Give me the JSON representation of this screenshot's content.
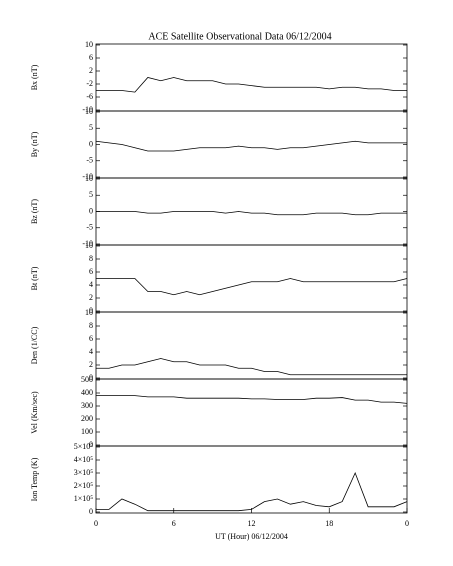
{
  "chart_data": [
    {
      "type": "line",
      "title": "ACE Satellite Observational Data   06/12/2004",
      "y_label": "Bx (nT)",
      "color": "#000000",
      "x": [
        0,
        1,
        2,
        3,
        4,
        5,
        6,
        7,
        8,
        9,
        10,
        11,
        12,
        13,
        14,
        15,
        16,
        17,
        18,
        19,
        20,
        21,
        22,
        23,
        24
      ],
      "values": [
        -4,
        -4,
        -4,
        -4.5,
        0,
        -1,
        0,
        -1,
        -1,
        -1,
        -2,
        -2,
        -2.5,
        -3,
        -3,
        -3,
        -3,
        -3,
        -3.5,
        -3,
        -3,
        -3.5,
        -3.5,
        -4,
        -4
      ],
      "xlim": [
        0,
        24
      ],
      "ylim": [
        -10,
        10
      ],
      "yticks": [
        10,
        6,
        2,
        -2,
        -6,
        -10
      ]
    },
    {
      "type": "line",
      "y_label": "By (nT)",
      "color": "#000000",
      "x": [
        0,
        1,
        2,
        3,
        4,
        5,
        6,
        7,
        8,
        9,
        10,
        11,
        12,
        13,
        14,
        15,
        16,
        17,
        18,
        19,
        20,
        21,
        22,
        23,
        24
      ],
      "values": [
        1,
        0.5,
        0,
        -1,
        -2,
        -2,
        -2,
        -1.5,
        -1,
        -1,
        -1,
        -0.5,
        -1,
        -1,
        -1.5,
        -1,
        -1,
        -0.5,
        0,
        0.5,
        1,
        0.5,
        0.5,
        0.5,
        0.5
      ],
      "xlim": [
        0,
        24
      ],
      "ylim": [
        -10,
        10
      ],
      "yticks": [
        10,
        5,
        0,
        -5,
        -10
      ]
    },
    {
      "type": "line",
      "y_label": "Bz (nT)",
      "color": "#000000",
      "x": [
        0,
        1,
        2,
        3,
        4,
        5,
        6,
        7,
        8,
        9,
        10,
        11,
        12,
        13,
        14,
        15,
        16,
        17,
        18,
        19,
        20,
        21,
        22,
        23,
        24
      ],
      "values": [
        0,
        0,
        0,
        0,
        -0.5,
        -0.5,
        0,
        0,
        0,
        0,
        -0.5,
        0,
        -0.5,
        -0.5,
        -1,
        -1,
        -1,
        -0.5,
        -0.5,
        -0.5,
        -1,
        -1,
        -0.5,
        -0.5,
        -0.5
      ],
      "xlim": [
        0,
        24
      ],
      "ylim": [
        -10,
        10
      ],
      "yticks": [
        10,
        5,
        0,
        -5,
        -10
      ]
    },
    {
      "type": "line",
      "y_label": "Bt (nT)",
      "color": "#000000",
      "x": [
        0,
        1,
        2,
        3,
        4,
        5,
        6,
        7,
        8,
        9,
        10,
        11,
        12,
        13,
        14,
        15,
        16,
        17,
        18,
        19,
        20,
        21,
        22,
        23,
        24
      ],
      "values": [
        5,
        5,
        5,
        5,
        3,
        3,
        2.5,
        3,
        2.5,
        3,
        3.5,
        4,
        4.5,
        4.5,
        4.5,
        5,
        4.5,
        4.5,
        4.5,
        4.5,
        4.5,
        4.5,
        4.5,
        4.5,
        5
      ],
      "xlim": [
        0,
        24
      ],
      "ylim": [
        0,
        10
      ],
      "yticks": [
        10,
        8,
        6,
        4,
        2,
        0
      ]
    },
    {
      "type": "line",
      "y_label": "Den (1/CC)",
      "color": "#000000",
      "x": [
        0,
        1,
        2,
        3,
        4,
        5,
        6,
        7,
        8,
        9,
        10,
        11,
        12,
        13,
        14,
        15,
        16,
        17,
        18,
        19,
        20,
        21,
        22,
        23,
        24
      ],
      "values": [
        1.5,
        1.5,
        2,
        2,
        2.5,
        3,
        2.5,
        2.5,
        2,
        2,
        2,
        1.5,
        1.5,
        1,
        1,
        0.5,
        0.5,
        0.5,
        0.5,
        0.5,
        0.5,
        0.5,
        0.5,
        0.5,
        0.5
      ],
      "xlim": [
        0,
        24
      ],
      "ylim": [
        0,
        10
      ],
      "yticks": [
        10,
        8,
        6,
        4,
        2,
        0
      ]
    },
    {
      "type": "line",
      "y_label": "Vel (Km/sec)",
      "color": "#000000",
      "x": [
        0,
        1,
        2,
        3,
        4,
        5,
        6,
        7,
        8,
        9,
        10,
        11,
        12,
        13,
        14,
        15,
        16,
        17,
        18,
        19,
        20,
        21,
        22,
        23,
        24
      ],
      "values": [
        380,
        380,
        380,
        380,
        370,
        370,
        370,
        360,
        360,
        360,
        360,
        360,
        355,
        355,
        350,
        350,
        350,
        360,
        360,
        365,
        345,
        345,
        330,
        330,
        320
      ],
      "xlim": [
        0,
        24
      ],
      "ylim": [
        0,
        500
      ],
      "yticks": [
        500,
        400,
        300,
        200,
        100,
        0
      ]
    },
    {
      "type": "line",
      "y_label": "Ion Temp (K)",
      "color": "#000000",
      "xlabel": "UT (Hour)   06/12/2004",
      "x": [
        0,
        1,
        2,
        3,
        4,
        5,
        6,
        7,
        8,
        9,
        10,
        11,
        12,
        13,
        14,
        15,
        16,
        17,
        18,
        19,
        20,
        21,
        22,
        23,
        24
      ],
      "values": [
        20000,
        20000,
        100000,
        60000,
        10000,
        10000,
        10000,
        10000,
        10000,
        10000,
        10000,
        10000,
        20000,
        80000,
        100000,
        60000,
        80000,
        50000,
        40000,
        80000,
        300000,
        40000,
        40000,
        40000,
        80000
      ],
      "xlim": [
        0,
        24
      ],
      "xticks": [
        0,
        6,
        12,
        18,
        {
          "value": 24,
          "label": "0"
        }
      ],
      "ylim": [
        0,
        500000
      ],
      "yticks": [
        {
          "value": 500000,
          "label": "5×10⁵"
        },
        {
          "value": 400000,
          "label": "4×10⁵"
        },
        {
          "value": 300000,
          "label": "3×10⁵"
        },
        {
          "value": 200000,
          "label": "2×10⁵"
        },
        {
          "value": 100000,
          "label": "1×10⁵"
        },
        0
      ]
    }
  ]
}
